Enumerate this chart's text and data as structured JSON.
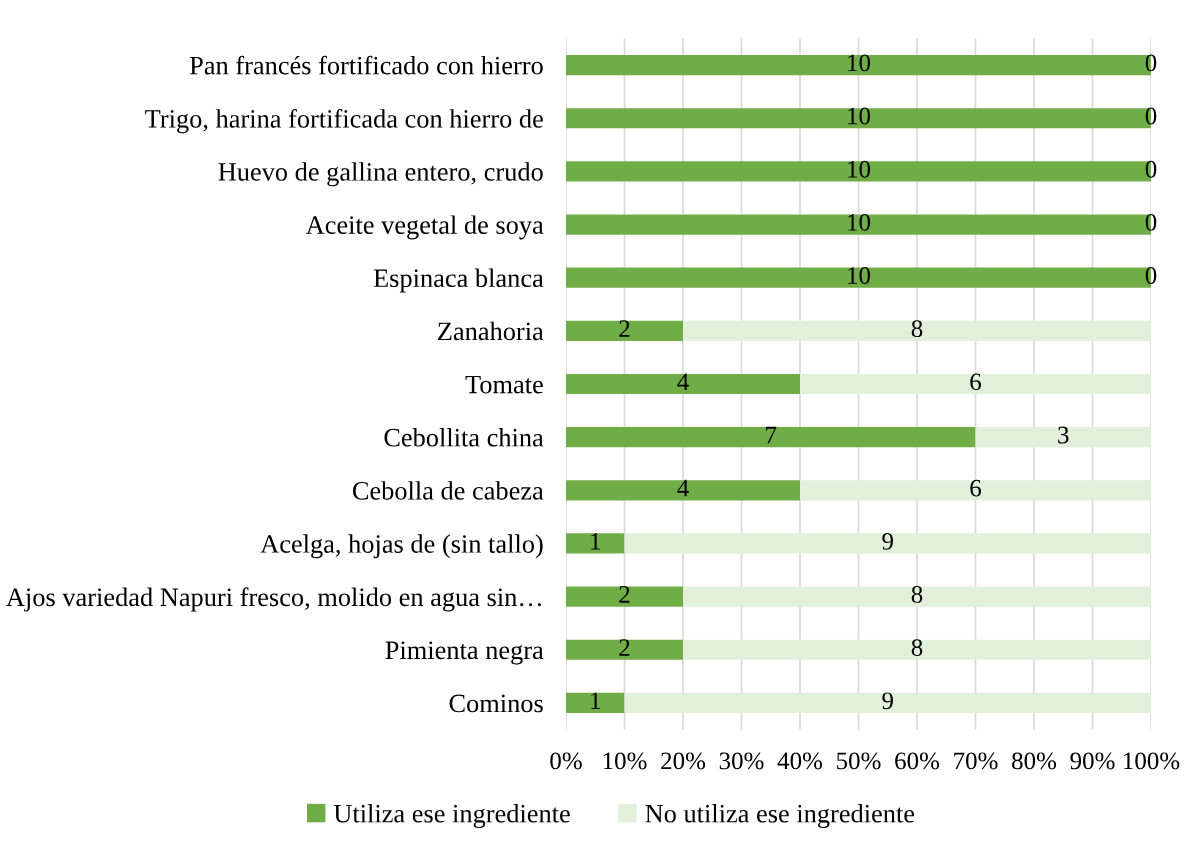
{
  "chart_data": {
    "type": "bar",
    "orientation": "horizontal",
    "stacked": true,
    "categories": [
      "Pan francés fortificado con hierro",
      "Trigo, harina fortificada con hierro de",
      "Huevo de gallina entero, crudo",
      "Aceite vegetal de soya",
      "Espinaca blanca",
      "Zanahoria",
      "Tomate",
      "Cebollita china",
      "Cebolla de cabeza",
      "Acelga, hojas de (sin tallo)",
      "Ajos variedad Napuri fresco, molido en agua sin…",
      "Pimienta negra",
      "Cominos"
    ],
    "series": [
      {
        "name": "Utiliza ese ingrediente",
        "color": "#70ad47",
        "values": [
          100,
          100,
          100,
          100,
          100,
          20,
          40,
          70,
          40,
          10,
          20,
          20,
          10
        ]
      },
      {
        "name": "No utiliza ese ingrediente",
        "color": "#e2efda",
        "values": [
          0,
          0,
          0,
          0,
          0,
          80,
          60,
          30,
          60,
          90,
          80,
          80,
          90
        ]
      }
    ],
    "xlim": [
      0,
      100
    ],
    "xticks": [
      {
        "value": 0,
        "label": "0%"
      },
      {
        "value": 10,
        "label": "10%"
      },
      {
        "value": 20,
        "label": "20%"
      },
      {
        "value": 30,
        "label": "30%"
      },
      {
        "value": 40,
        "label": "40%"
      },
      {
        "value": 50,
        "label": "50%"
      },
      {
        "value": 60,
        "label": "60%"
      },
      {
        "value": 70,
        "label": "70%"
      },
      {
        "value": 80,
        "label": "80%"
      },
      {
        "value": 90,
        "label": "90%"
      },
      {
        "value": 100,
        "label": "100%"
      }
    ],
    "annotations": [
      "10",
      "0",
      "10",
      "0",
      "10",
      "0",
      "10",
      "0",
      "10",
      "0",
      "2",
      "8",
      "4",
      "6",
      "7",
      "3",
      "4",
      "6",
      "1",
      "9",
      "2",
      "8",
      "2",
      "8",
      "1",
      "9"
    ],
    "grid": "x",
    "legend": "bottom"
  }
}
